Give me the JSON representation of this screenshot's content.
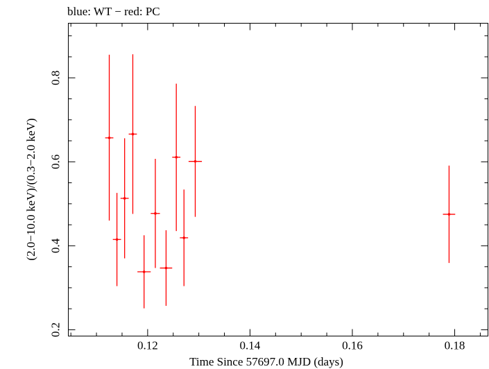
{
  "chart_data": {
    "type": "scatter",
    "title": "blue: WT − red: PC",
    "xlabel": "Time Since 57697.0 MJD (days)",
    "ylabel": "(2.0−10.0 keV)/(0.3−2.0 keV)",
    "xlim": [
      0.1045,
      0.1865
    ],
    "ylim": [
      0.185,
      0.93
    ],
    "x_major_ticks": [
      0.12,
      0.14,
      0.16,
      0.18
    ],
    "x_tick_labels": [
      "0.12",
      "0.14",
      "0.16",
      "0.18"
    ],
    "x_minor_ticks": [
      0.105,
      0.11,
      0.115,
      0.125,
      0.13,
      0.135,
      0.145,
      0.15,
      0.155,
      0.165,
      0.17,
      0.175,
      0.185
    ],
    "y_major_ticks": [
      0.2,
      0.4,
      0.6,
      0.8
    ],
    "y_tick_labels": [
      "0.2",
      "0.4",
      "0.6",
      "0.8"
    ],
    "y_minor_ticks": [
      0.25,
      0.3,
      0.35,
      0.45,
      0.5,
      0.55,
      0.65,
      0.7,
      0.75,
      0.85,
      0.9
    ],
    "grid": false,
    "series": [
      {
        "name": "PC",
        "color": "#ff0000",
        "points": [
          {
            "x": 0.1125,
            "xerr": 0.0008,
            "y": 0.657,
            "yerr_low": 0.197,
            "yerr_high": 0.198
          },
          {
            "x": 0.114,
            "xerr": 0.0008,
            "y": 0.415,
            "yerr_low": 0.111,
            "yerr_high": 0.111
          },
          {
            "x": 0.1155,
            "xerr": 0.0008,
            "y": 0.513,
            "yerr_low": 0.143,
            "yerr_high": 0.143
          },
          {
            "x": 0.1171,
            "xerr": 0.0008,
            "y": 0.666,
            "yerr_low": 0.19,
            "yerr_high": 0.19
          },
          {
            "x": 0.1193,
            "xerr": 0.0013,
            "y": 0.338,
            "yerr_low": 0.087,
            "yerr_high": 0.087
          },
          {
            "x": 0.1215,
            "xerr": 0.0009,
            "y": 0.477,
            "yerr_low": 0.13,
            "yerr_high": 0.13
          },
          {
            "x": 0.1236,
            "xerr": 0.0012,
            "y": 0.347,
            "yerr_low": 0.09,
            "yerr_high": 0.09
          },
          {
            "x": 0.1256,
            "xerr": 0.0008,
            "y": 0.611,
            "yerr_low": 0.176,
            "yerr_high": 0.175
          },
          {
            "x": 0.1271,
            "xerr": 0.0008,
            "y": 0.419,
            "yerr_low": 0.115,
            "yerr_high": 0.115
          },
          {
            "x": 0.1293,
            "xerr": 0.0013,
            "y": 0.601,
            "yerr_low": 0.132,
            "yerr_high": 0.132
          },
          {
            "x": 0.1789,
            "xerr": 0.0012,
            "y": 0.475,
            "yerr_low": 0.116,
            "yerr_high": 0.116
          }
        ]
      }
    ]
  }
}
